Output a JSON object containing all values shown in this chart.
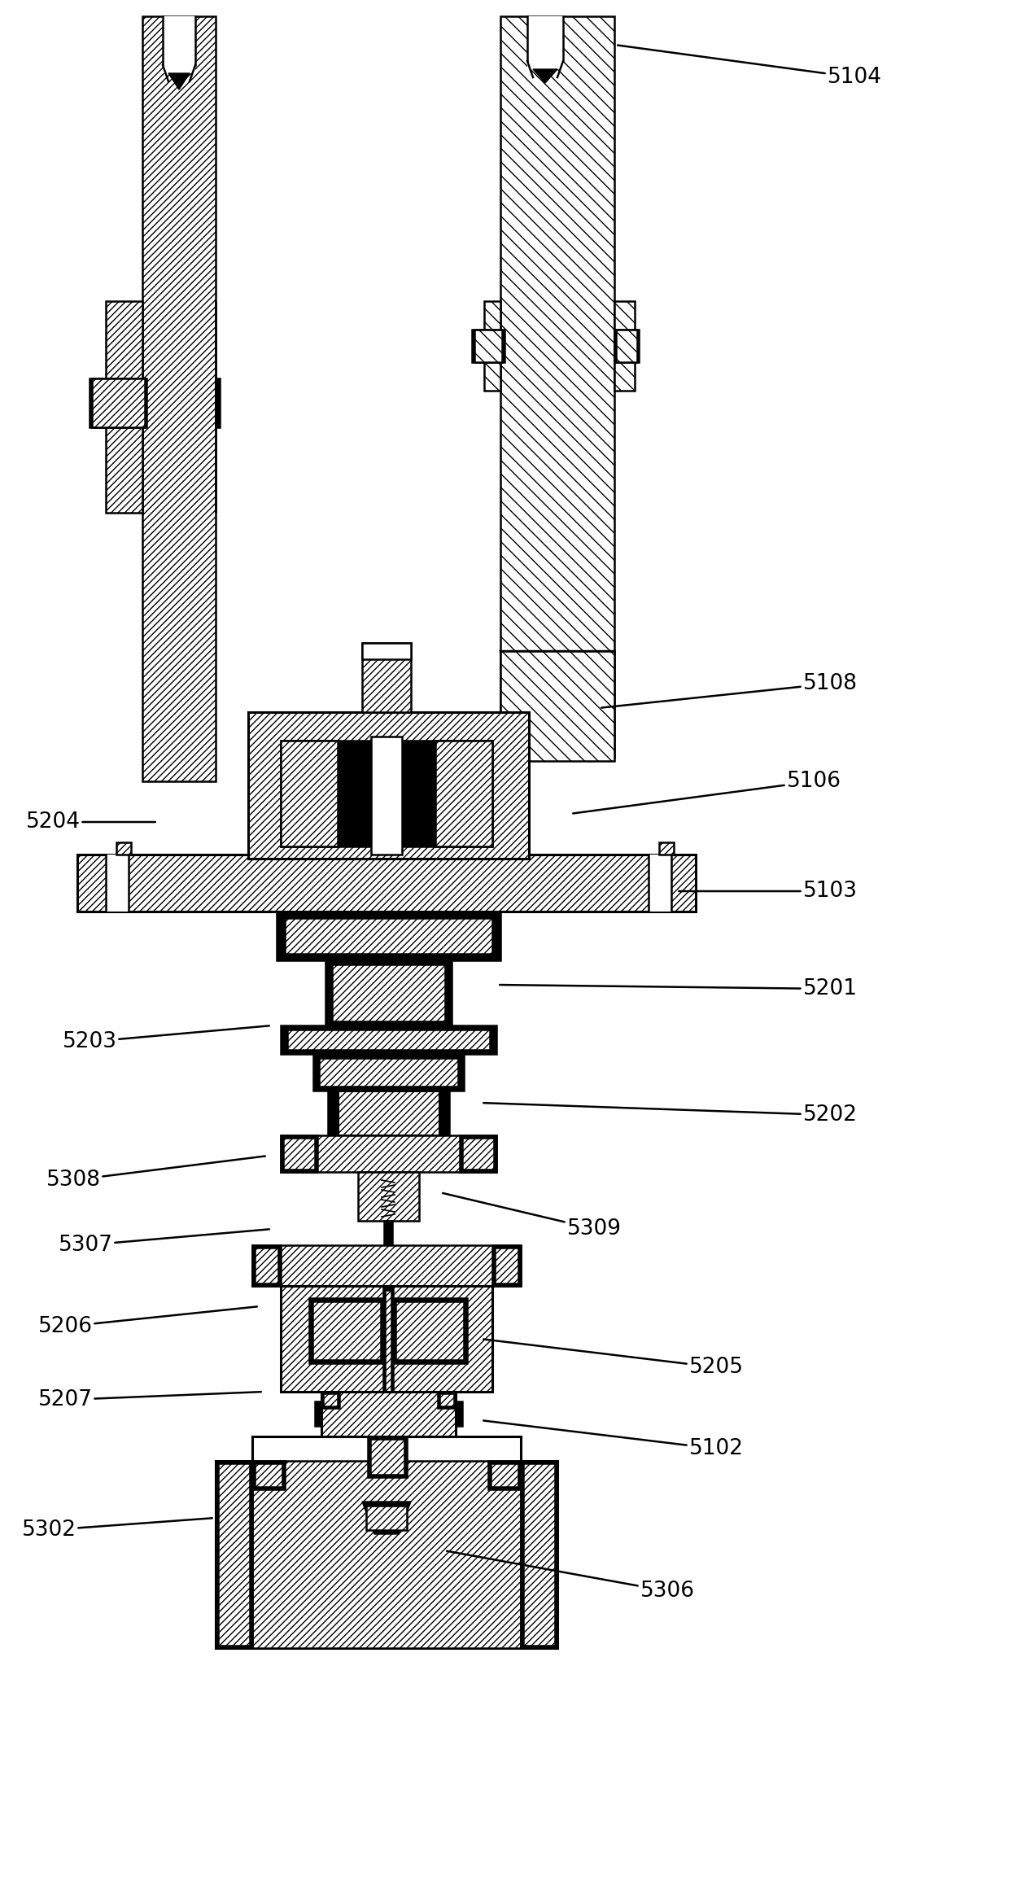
{
  "background_color": "#ffffff",
  "fig_width": 12.4,
  "fig_height": 23.37,
  "dpi": 100,
  "labels_info": [
    [
      "5104",
      1050,
      95,
      755,
      55
    ],
    [
      "5108",
      1020,
      840,
      735,
      870
    ],
    [
      "5106",
      1000,
      960,
      700,
      1000
    ],
    [
      "5103",
      1020,
      1095,
      830,
      1095
    ],
    [
      "5204",
      65,
      1010,
      195,
      1010
    ],
    [
      "5201",
      1020,
      1215,
      610,
      1210
    ],
    [
      "5203",
      110,
      1280,
      335,
      1260
    ],
    [
      "5202",
      1020,
      1370,
      590,
      1355
    ],
    [
      "5308",
      90,
      1450,
      330,
      1420
    ],
    [
      "5309",
      730,
      1510,
      540,
      1465
    ],
    [
      "5307",
      105,
      1530,
      335,
      1510
    ],
    [
      "5206",
      80,
      1630,
      320,
      1605
    ],
    [
      "5205",
      880,
      1680,
      590,
      1645
    ],
    [
      "5207",
      80,
      1720,
      325,
      1710
    ],
    [
      "5102",
      880,
      1780,
      590,
      1745
    ],
    [
      "5302",
      60,
      1880,
      265,
      1865
    ],
    [
      "5306",
      820,
      1955,
      545,
      1905
    ]
  ]
}
